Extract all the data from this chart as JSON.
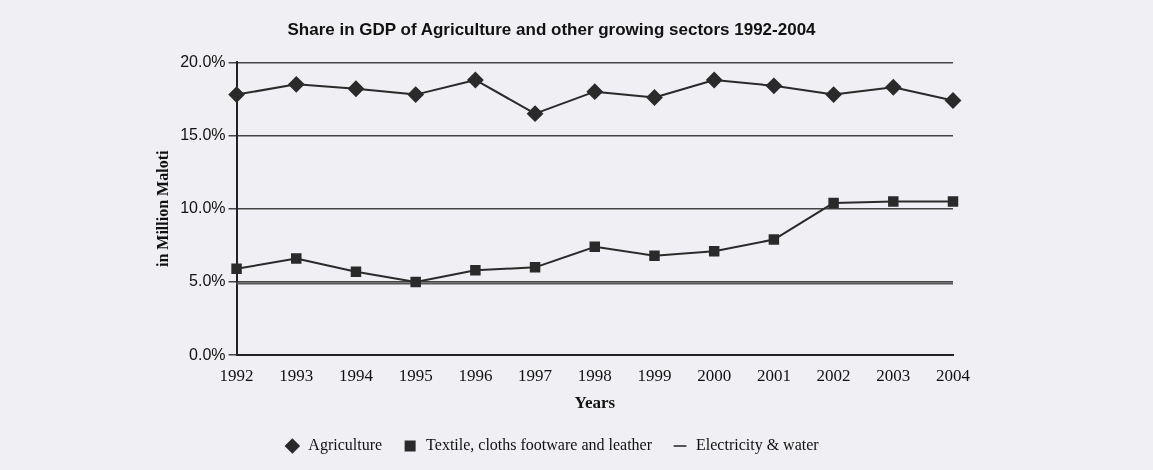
{
  "chart_data": {
    "type": "line",
    "title": "Share in GDP of Agriculture and other growing sectors 1992-2004",
    "xlabel": "Years",
    "ylabel": "in Million Maloti",
    "categories": [
      "1992",
      "1993",
      "1994",
      "1995",
      "1996",
      "1997",
      "1998",
      "1999",
      "2000",
      "2001",
      "2002",
      "2003",
      "2004"
    ],
    "series": [
      {
        "name": "Agriculture",
        "color": "#2a2a2a",
        "marker": "diamond",
        "values": [
          17.8,
          18.5,
          18.2,
          17.8,
          18.8,
          16.5,
          18.0,
          17.6,
          18.8,
          18.4,
          17.8,
          18.3,
          17.4
        ]
      },
      {
        "name": "Textile, cloths footware and leather",
        "color": "#2a2a2a",
        "marker": "square",
        "values": [
          5.9,
          6.6,
          5.7,
          5.0,
          5.8,
          6.0,
          7.4,
          6.8,
          7.1,
          7.9,
          10.4,
          10.5,
          10.5
        ]
      },
      {
        "name": "Electricity & water",
        "color": "#555555",
        "marker": "none",
        "values": [
          4.9,
          4.9,
          4.9,
          4.9,
          4.9,
          4.9,
          4.9,
          4.9,
          4.9,
          4.9,
          4.9,
          4.9,
          4.9
        ]
      }
    ],
    "ylim": [
      0,
      20
    ],
    "yticks": [
      {
        "value": 0,
        "label": "0.0%"
      },
      {
        "value": 5,
        "label": "5.0%"
      },
      {
        "value": 10,
        "label": "10.0%"
      },
      {
        "value": 15,
        "label": "15.0%"
      },
      {
        "value": 20,
        "label": "20.0%"
      }
    ],
    "grid": "y",
    "legend": "bottom",
    "line_style": "solid"
  }
}
